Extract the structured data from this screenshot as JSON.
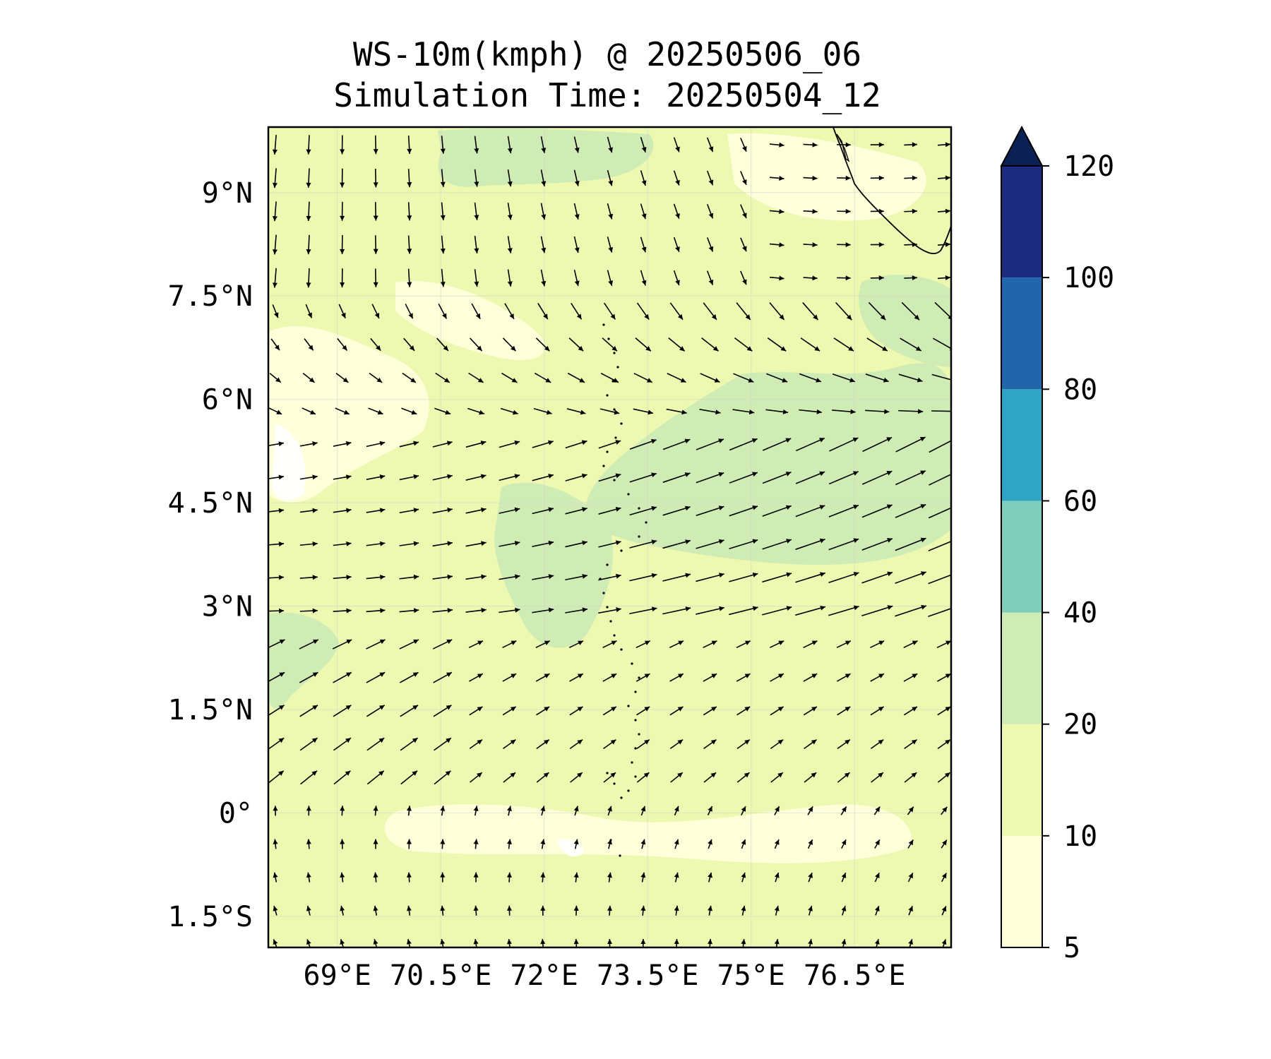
{
  "title": {
    "line1": "WS-10m(kmph) @ 20250506_06",
    "line2": "Simulation Time: 20250504_12"
  },
  "map": {
    "lat_ticks": [
      "9°N",
      "7.5°N",
      "6°N",
      "4.5°N",
      "3°N",
      "1.5°N",
      "0°",
      "1.5°S"
    ],
    "lon_ticks": [
      "69°E",
      "70.5°E",
      "72°E",
      "73.5°E",
      "75°E",
      "76.5°E"
    ],
    "extent": {
      "lon": [
        68.0,
        77.9
      ],
      "lat": [
        -1.95,
        9.95
      ]
    },
    "field": "10 m wind speed (kmph), filled contours with wind vectors",
    "colors": {
      "band_5_10": "#ffffd9",
      "band_10_20": "#edf8b1",
      "band_20_40": "#d0ecb5",
      "coastline": "#000000",
      "arrow": "#000000"
    }
  },
  "colorbar": {
    "levels": [
      "5",
      "10",
      "20",
      "40",
      "60",
      "80",
      "100",
      "120"
    ],
    "colors": [
      "#ffffd9",
      "#edf8b1",
      "#d0ecb5",
      "#7fcdbb",
      "#2fa4c5",
      "#2166ac",
      "#1d2c80",
      "#0c2153"
    ],
    "extend": "max"
  }
}
